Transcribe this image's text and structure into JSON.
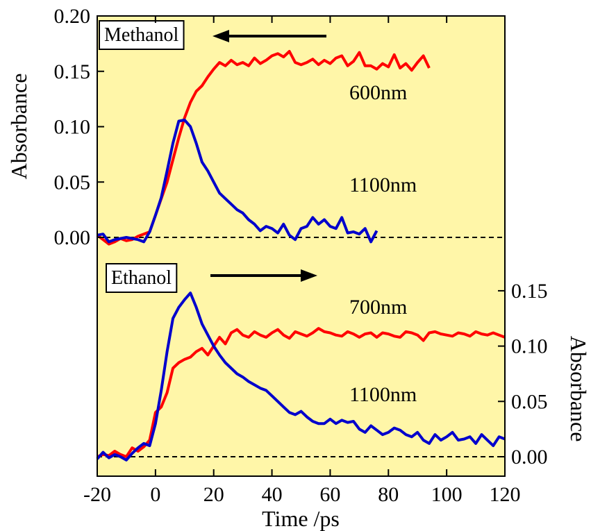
{
  "chart_data": {
    "type": "line",
    "xlabel": "Time /ps",
    "xlim": [
      -20,
      120
    ],
    "x_ticks": [
      "-20",
      "0",
      "20",
      "40",
      "60",
      "80",
      "100",
      "120"
    ],
    "grid": false,
    "background_color": "#fff6a8",
    "panels": [
      {
        "name": "Methanol",
        "label": "Methanol",
        "arrow_direction": "left",
        "ylabel": "Absorbance",
        "y_axis_side": "left",
        "ylim": [
          -0.01,
          0.2
        ],
        "y_ticks": [
          "0.00",
          "0.05",
          "0.10",
          "0.15",
          "0.20"
        ],
        "baseline": 0.0,
        "annotations": [
          "600nm",
          "1100nm"
        ],
        "series": [
          {
            "name": "600nm",
            "color": "#ff0000",
            "x": [
              -20,
              -18,
              -16,
              -14,
              -12,
              -10,
              -8,
              -6,
              -4,
              -2,
              0,
              2,
              4,
              6,
              8,
              10,
              12,
              14,
              16,
              18,
              20,
              22,
              24,
              26,
              28,
              30,
              32,
              34,
              36,
              38,
              40,
              42,
              44,
              46,
              48,
              50,
              52,
              54,
              56,
              58,
              60,
              62,
              64,
              66,
              68,
              70,
              72,
              74,
              76,
              78,
              80,
              82,
              84,
              86,
              88,
              90,
              92,
              94
            ],
            "y": [
              0.002,
              -0.002,
              -0.006,
              -0.004,
              -0.001,
              -0.003,
              -0.002,
              0.001,
              0.003,
              0.005,
              0.02,
              0.035,
              0.05,
              0.07,
              0.09,
              0.108,
              0.122,
              0.132,
              0.137,
              0.145,
              0.152,
              0.158,
              0.155,
              0.16,
              0.156,
              0.158,
              0.155,
              0.162,
              0.157,
              0.16,
              0.164,
              0.166,
              0.163,
              0.168,
              0.158,
              0.156,
              0.158,
              0.161,
              0.156,
              0.16,
              0.157,
              0.162,
              0.164,
              0.155,
              0.159,
              0.167,
              0.155,
              0.155,
              0.152,
              0.157,
              0.154,
              0.165,
              0.153,
              0.157,
              0.151,
              0.158,
              0.164,
              0.153
            ]
          },
          {
            "name": "1100nm",
            "color": "#0000cc",
            "x": [
              -20,
              -18,
              -16,
              -14,
              -12,
              -10,
              -8,
              -6,
              -4,
              -2,
              0,
              2,
              4,
              6,
              8,
              10,
              12,
              14,
              16,
              18,
              20,
              22,
              24,
              26,
              28,
              30,
              32,
              34,
              36,
              38,
              40,
              42,
              44,
              46,
              48,
              50,
              52,
              54,
              56,
              58,
              60,
              62,
              64,
              66,
              68,
              70,
              72,
              74,
              76
            ],
            "y": [
              0.002,
              0.003,
              -0.004,
              -0.002,
              -0.001,
              0.0,
              -0.001,
              -0.002,
              -0.004,
              0.005,
              0.02,
              0.036,
              0.06,
              0.085,
              0.105,
              0.106,
              0.1,
              0.085,
              0.068,
              0.06,
              0.05,
              0.04,
              0.035,
              0.03,
              0.025,
              0.022,
              0.016,
              0.012,
              0.006,
              0.01,
              0.008,
              0.004,
              0.012,
              0.002,
              -0.002,
              0.008,
              0.01,
              0.018,
              0.012,
              0.016,
              0.01,
              0.008,
              0.018,
              0.004,
              0.005,
              0.003,
              0.008,
              -0.004,
              0.006
            ]
          }
        ]
      },
      {
        "name": "Ethanol",
        "label": "Ethanol",
        "arrow_direction": "right",
        "ylabel": "Absorbance",
        "y_axis_side": "right",
        "ylim": [
          -0.01,
          0.165
        ],
        "y_ticks": [
          "0.00",
          "0.05",
          "0.10",
          "0.15"
        ],
        "baseline": 0.0,
        "annotations": [
          "700nm",
          "1100nm"
        ],
        "series": [
          {
            "name": "700nm",
            "color": "#ff0000",
            "x": [
              -20,
              -18,
              -16,
              -14,
              -12,
              -10,
              -8,
              -6,
              -4,
              -2,
              0,
              2,
              4,
              6,
              8,
              10,
              12,
              14,
              16,
              18,
              20,
              22,
              24,
              26,
              28,
              30,
              32,
              34,
              36,
              38,
              40,
              42,
              44,
              46,
              48,
              50,
              52,
              54,
              56,
              58,
              60,
              62,
              64,
              66,
              68,
              70,
              72,
              74,
              76,
              78,
              80,
              82,
              84,
              86,
              88,
              90,
              92,
              94,
              96,
              98,
              100,
              102,
              104,
              106,
              108,
              110,
              112,
              114,
              116,
              118,
              120
            ],
            "y": [
              0.0,
              0.002,
              0.001,
              0.005,
              0.002,
              0.0,
              0.008,
              0.005,
              0.009,
              0.015,
              0.04,
              0.045,
              0.058,
              0.08,
              0.085,
              0.088,
              0.09,
              0.095,
              0.098,
              0.092,
              0.1,
              0.108,
              0.102,
              0.112,
              0.115,
              0.11,
              0.108,
              0.113,
              0.11,
              0.108,
              0.112,
              0.115,
              0.11,
              0.107,
              0.113,
              0.111,
              0.109,
              0.112,
              0.116,
              0.113,
              0.112,
              0.11,
              0.109,
              0.113,
              0.111,
              0.108,
              0.111,
              0.112,
              0.108,
              0.112,
              0.111,
              0.109,
              0.108,
              0.113,
              0.112,
              0.11,
              0.105,
              0.112,
              0.113,
              0.111,
              0.11,
              0.109,
              0.112,
              0.111,
              0.109,
              0.113,
              0.111,
              0.11,
              0.112,
              0.11,
              0.108
            ]
          },
          {
            "name": "1100nm",
            "color": "#0000cc",
            "x": [
              -20,
              -18,
              -16,
              -14,
              -12,
              -10,
              -8,
              -6,
              -4,
              -2,
              0,
              2,
              4,
              6,
              8,
              10,
              12,
              14,
              16,
              18,
              20,
              22,
              24,
              26,
              28,
              30,
              32,
              34,
              36,
              38,
              40,
              42,
              44,
              46,
              48,
              50,
              52,
              54,
              56,
              58,
              60,
              62,
              64,
              66,
              68,
              70,
              72,
              74,
              76,
              78,
              80,
              82,
              84,
              86,
              88,
              90,
              92,
              94,
              96,
              98,
              100,
              102,
              104,
              106,
              108,
              110,
              112,
              114,
              116,
              118,
              120
            ],
            "y": [
              -0.002,
              0.004,
              -0.001,
              0.002,
              0.0,
              -0.003,
              0.003,
              0.008,
              0.012,
              0.01,
              0.03,
              0.06,
              0.095,
              0.125,
              0.135,
              0.142,
              0.148,
              0.135,
              0.12,
              0.11,
              0.1,
              0.092,
              0.085,
              0.08,
              0.075,
              0.072,
              0.068,
              0.065,
              0.062,
              0.06,
              0.055,
              0.05,
              0.045,
              0.04,
              0.038,
              0.041,
              0.036,
              0.032,
              0.03,
              0.03,
              0.034,
              0.03,
              0.033,
              0.031,
              0.032,
              0.025,
              0.022,
              0.028,
              0.024,
              0.02,
              0.022,
              0.026,
              0.024,
              0.02,
              0.018,
              0.022,
              0.015,
              0.012,
              0.02,
              0.015,
              0.018,
              0.022,
              0.015,
              0.016,
              0.018,
              0.012,
              0.02,
              0.015,
              0.01,
              0.018,
              0.016
            ]
          }
        ]
      }
    ]
  }
}
